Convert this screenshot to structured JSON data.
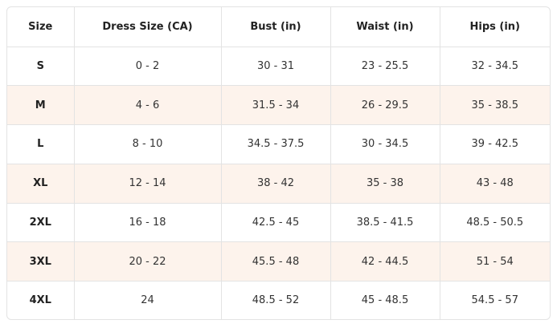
{
  "table": {
    "header": [
      "Size",
      "Dress Size (CA)",
      "Bust (in)",
      "Waist (in)",
      "Hips (in)"
    ],
    "rows": [
      [
        "S",
        "0 - 2",
        "30 - 31",
        "23 - 25.5",
        "32 - 34.5"
      ],
      [
        "M",
        "4 - 6",
        "31.5 - 34",
        "26 - 29.5",
        "35 - 38.5"
      ],
      [
        "L",
        "8 - 10",
        "34.5 - 37.5",
        "30 - 34.5",
        "39 - 42.5"
      ],
      [
        "XL",
        "12 - 14",
        "38 - 42",
        "35 - 38",
        "43 - 48"
      ],
      [
        "2XL",
        "16 - 18",
        "42.5 - 45",
        "38.5 - 41.5",
        "48.5 - 50.5"
      ],
      [
        "3XL",
        "20 - 22",
        "45.5 - 48",
        "42 - 44.5",
        "51 - 54"
      ],
      [
        "4XL",
        "24",
        "48.5 - 52",
        "45 - 48.5",
        "54.5 - 57"
      ]
    ]
  }
}
